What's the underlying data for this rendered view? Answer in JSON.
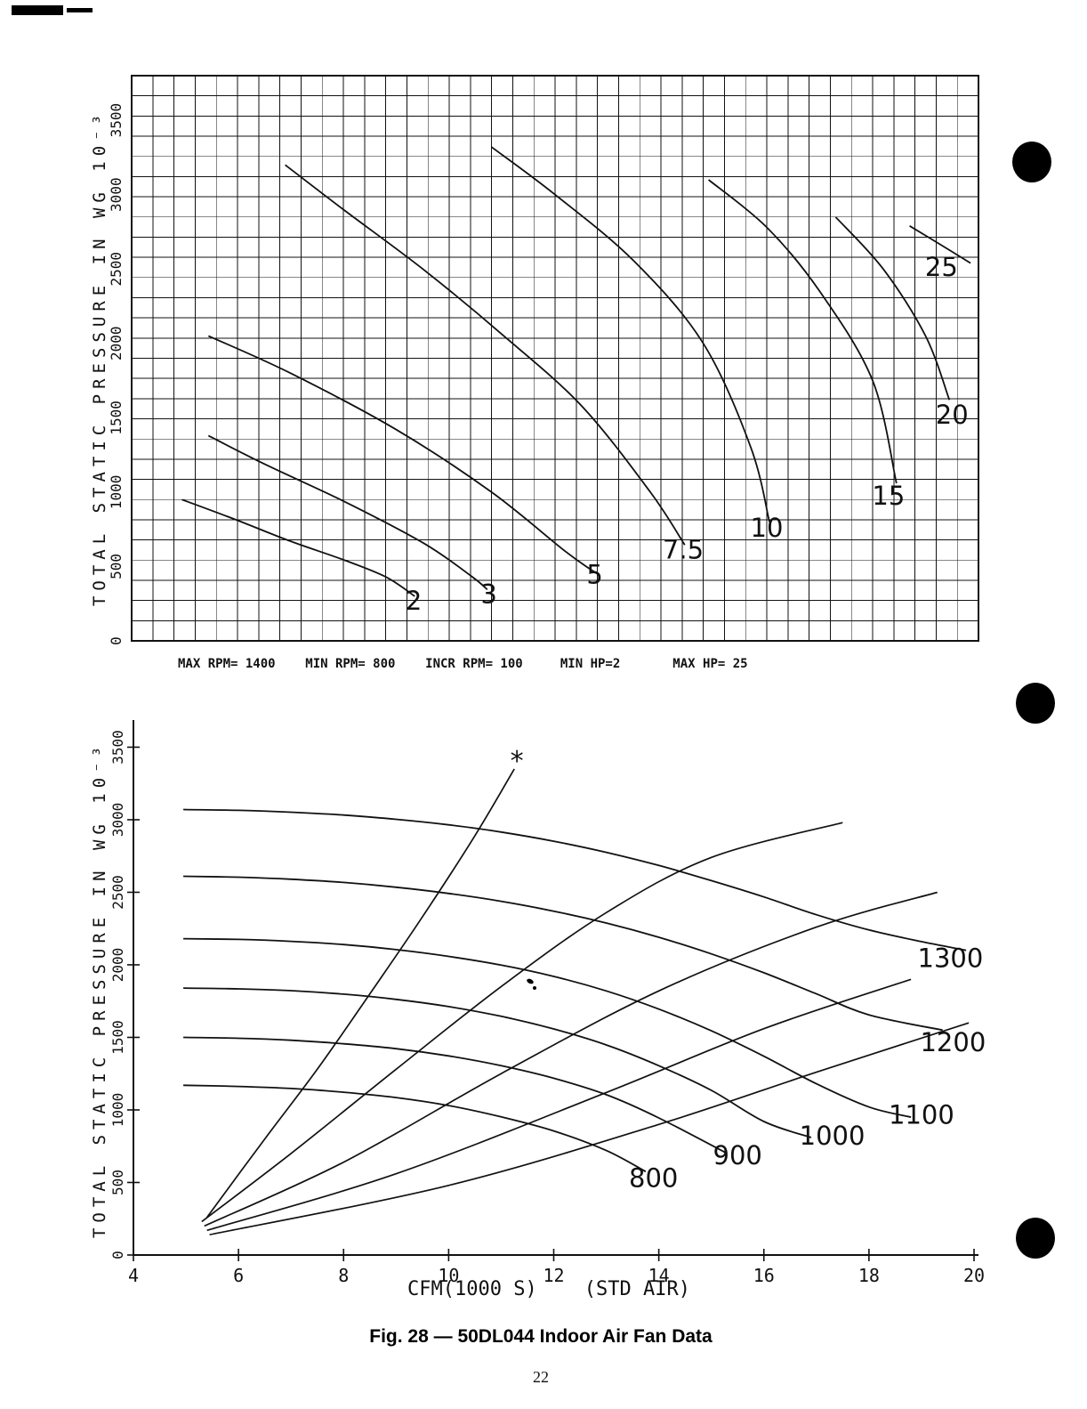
{
  "page": {
    "number": "22",
    "caption": "Fig. 28 — 50DL044 Indoor Air Fan Data"
  },
  "colors": {
    "ink": "#111111",
    "paper": "#ffffff"
  },
  "params_line": {
    "text": "MAX RPM= 1400    MIN RPM= 800    INCR RPM= 100     MIN HP=2       MAX HP= 25"
  },
  "chart_data": [
    {
      "name": "brake-horsepower-chart",
      "type": "line",
      "title": "",
      "xlabel": "",
      "ylabel": "TOTAL STATIC PRESSURE IN WG 10⁻³",
      "xlim": [
        4,
        20
      ],
      "ylim": [
        0,
        3800
      ],
      "xticks": [],
      "yticks": [
        0,
        500,
        1000,
        1500,
        2000,
        2500,
        3000,
        3500
      ],
      "grid": true,
      "series": [
        {
          "name": "2-hp",
          "label": "2",
          "label_at": [
            9.33,
            210
          ],
          "points": [
            [
              4.95,
              950
            ],
            [
              6,
              810
            ],
            [
              7,
              670
            ],
            [
              8,
              545
            ],
            [
              8.8,
              430
            ],
            [
              9.35,
              300
            ]
          ]
        },
        {
          "name": "3-hp",
          "label": "3",
          "label_at": [
            10.75,
            255
          ],
          "points": [
            [
              5.45,
              1380
            ],
            [
              6.5,
              1190
            ],
            [
              8,
              940
            ],
            [
              9.5,
              660
            ],
            [
              10.4,
              440
            ],
            [
              10.72,
              345
            ]
          ]
        },
        {
          "name": "5-hp",
          "label": "5",
          "label_at": [
            12.75,
            385
          ],
          "points": [
            [
              5.45,
              2050
            ],
            [
              7,
              1800
            ],
            [
              9,
              1420
            ],
            [
              10.8,
              1000
            ],
            [
              12.2,
              600
            ],
            [
              12.82,
              445
            ]
          ]
        },
        {
          "name": "7.5-hp",
          "label": "7.5",
          "label_at": [
            14.42,
            555
          ],
          "points": [
            [
              6.9,
              3200
            ],
            [
              8,
              2900
            ],
            [
              9.5,
              2500
            ],
            [
              11,
              2060
            ],
            [
              12.5,
              1580
            ],
            [
              13.8,
              1000
            ],
            [
              14.45,
              645
            ]
          ]
        },
        {
          "name": "10-hp",
          "label": "10",
          "label_at": [
            16.0,
            700
          ],
          "points": [
            [
              10.8,
              3320
            ],
            [
              12,
              3000
            ],
            [
              13.5,
              2550
            ],
            [
              14.8,
              2000
            ],
            [
              15.7,
              1300
            ],
            [
              16.05,
              800
            ]
          ]
        },
        {
          "name": "15-hp",
          "label": "15",
          "label_at": [
            18.3,
            915
          ],
          "points": [
            [
              14.9,
              3100
            ],
            [
              16,
              2780
            ],
            [
              17,
              2350
            ],
            [
              18,
              1750
            ],
            [
              18.45,
              1060
            ]
          ]
        },
        {
          "name": "20-hp",
          "label": "20",
          "label_at": [
            19.5,
            1460
          ],
          "points": [
            [
              17.3,
              2850
            ],
            [
              18.2,
              2500
            ],
            [
              19,
              2050
            ],
            [
              19.45,
              1620
            ]
          ]
        },
        {
          "name": "25-hp",
          "label": "25",
          "label_at": [
            19.3,
            2455
          ],
          "points": [
            [
              18.7,
              2790
            ],
            [
              19.3,
              2660
            ],
            [
              19.85,
              2540
            ]
          ]
        }
      ]
    },
    {
      "name": "rpm-fan-curve-chart",
      "type": "line",
      "title": "",
      "xlabel": "CFM(1000 S)    (STD AIR)",
      "ylabel": "TOTAL STATIC PRESSURE IN WG 10⁻³",
      "xlim": [
        4,
        20
      ],
      "ylim": [
        0,
        3650
      ],
      "xticks": [
        4,
        6,
        8,
        10,
        12,
        14,
        16,
        18,
        20
      ],
      "yticks": [
        0,
        500,
        1000,
        1500,
        2000,
        2500,
        3000,
        3500
      ],
      "grid": false,
      "series": [
        {
          "name": "800-rpm",
          "label": "800",
          "label_at": [
            13.9,
            470
          ],
          "points": [
            [
              4.95,
              1170
            ],
            [
              6,
              1162
            ],
            [
              7,
              1148
            ],
            [
              8,
              1122
            ],
            [
              9,
              1085
            ],
            [
              10,
              1030
            ],
            [
              11,
              952
            ],
            [
              12,
              855
            ],
            [
              13,
              720
            ],
            [
              13.75,
              575
            ]
          ]
        },
        {
          "name": "900-rpm",
          "label": "900",
          "label_at": [
            15.5,
            625
          ],
          "points": [
            [
              4.95,
              1500
            ],
            [
              6,
              1494
            ],
            [
              7,
              1480
            ],
            [
              8,
              1456
            ],
            [
              9,
              1422
            ],
            [
              10,
              1372
            ],
            [
              11,
              1305
            ],
            [
              12,
              1218
            ],
            [
              13,
              1105
            ],
            [
              14,
              945
            ],
            [
              15.3,
              700
            ]
          ]
        },
        {
          "name": "1000-rpm",
          "label": "1000",
          "label_at": [
            17.3,
            760
          ],
          "points": [
            [
              4.95,
              1840
            ],
            [
              6,
              1834
            ],
            [
              7,
              1822
            ],
            [
              8,
              1798
            ],
            [
              9,
              1762
            ],
            [
              10,
              1712
            ],
            [
              11,
              1645
            ],
            [
              12,
              1558
            ],
            [
              13,
              1448
            ],
            [
              14,
              1305
            ],
            [
              15,
              1135
            ],
            [
              16,
              920
            ],
            [
              16.9,
              810
            ]
          ]
        },
        {
          "name": "1100-rpm",
          "label": "1100",
          "label_at": [
            19.0,
            905
          ],
          "points": [
            [
              4.95,
              2180
            ],
            [
              6,
              2175
            ],
            [
              7,
              2162
            ],
            [
              8,
              2140
            ],
            [
              9,
              2105
            ],
            [
              10,
              2058
            ],
            [
              11,
              1998
            ],
            [
              12,
              1920
            ],
            [
              13,
              1820
            ],
            [
              14,
              1695
            ],
            [
              15,
              1545
            ],
            [
              16,
              1370
            ],
            [
              17,
              1180
            ],
            [
              18,
              1020
            ],
            [
              18.8,
              950
            ]
          ]
        },
        {
          "name": "1200-rpm",
          "label": "1200",
          "label_at": [
            19.6,
            1405
          ],
          "points": [
            [
              4.95,
              2610
            ],
            [
              6,
              2604
            ],
            [
              7,
              2590
            ],
            [
              8,
              2568
            ],
            [
              9,
              2535
            ],
            [
              10,
              2492
            ],
            [
              11,
              2438
            ],
            [
              12,
              2370
            ],
            [
              13,
              2288
            ],
            [
              14,
              2190
            ],
            [
              15,
              2075
            ],
            [
              16,
              1945
            ],
            [
              17,
              1800
            ],
            [
              18,
              1655
            ],
            [
              19.4,
              1550
            ]
          ]
        },
        {
          "name": "1300-rpm",
          "label": "1300",
          "label_at": [
            19.55,
            1985
          ],
          "points": [
            [
              4.95,
              3070
            ],
            [
              6,
              3065
            ],
            [
              7,
              3052
            ],
            [
              8,
              3032
            ],
            [
              9,
              3003
            ],
            [
              10,
              2965
            ],
            [
              11,
              2915
            ],
            [
              12,
              2852
            ],
            [
              13,
              2775
            ],
            [
              14,
              2685
            ],
            [
              15,
              2580
            ],
            [
              16,
              2468
            ],
            [
              17,
              2345
            ],
            [
              18,
              2240
            ],
            [
              19,
              2160
            ],
            [
              19.85,
              2100
            ]
          ]
        }
      ],
      "aux_lines": [
        {
          "name": "surge-line",
          "points": [
            [
              5.4,
              260
            ],
            [
              6.5,
              800
            ],
            [
              7.5,
              1280
            ],
            [
              8.5,
              1800
            ],
            [
              9.5,
              2330
            ],
            [
              10.5,
              2890
            ],
            [
              11.25,
              3350
            ]
          ]
        },
        {
          "name": "unlabeled-line-1",
          "points": [
            [
              5.3,
              230
            ],
            [
              7,
              700
            ],
            [
              9,
              1280
            ],
            [
              11,
              1850
            ],
            [
              13,
              2360
            ],
            [
              15,
              2740
            ],
            [
              17.5,
              2980
            ]
          ]
        },
        {
          "name": "unlabeled-line-2",
          "points": [
            [
              5.35,
              200
            ],
            [
              8,
              640
            ],
            [
              11,
              1250
            ],
            [
              14,
              1820
            ],
            [
              17,
              2260
            ],
            [
              19.3,
              2500
            ]
          ]
        },
        {
          "name": "unlabeled-line-3",
          "points": [
            [
              5.4,
              170
            ],
            [
              9,
              560
            ],
            [
              13,
              1120
            ],
            [
              16,
              1560
            ],
            [
              18.8,
              1900
            ]
          ]
        },
        {
          "name": "unlabeled-line-4",
          "points": [
            [
              5.45,
              140
            ],
            [
              10,
              480
            ],
            [
              14,
              900
            ],
            [
              17,
              1260
            ],
            [
              19.9,
              1600
            ]
          ]
        }
      ],
      "markers": [
        {
          "glyph": "*",
          "x": 11.3,
          "y": 3400
        }
      ]
    }
  ]
}
